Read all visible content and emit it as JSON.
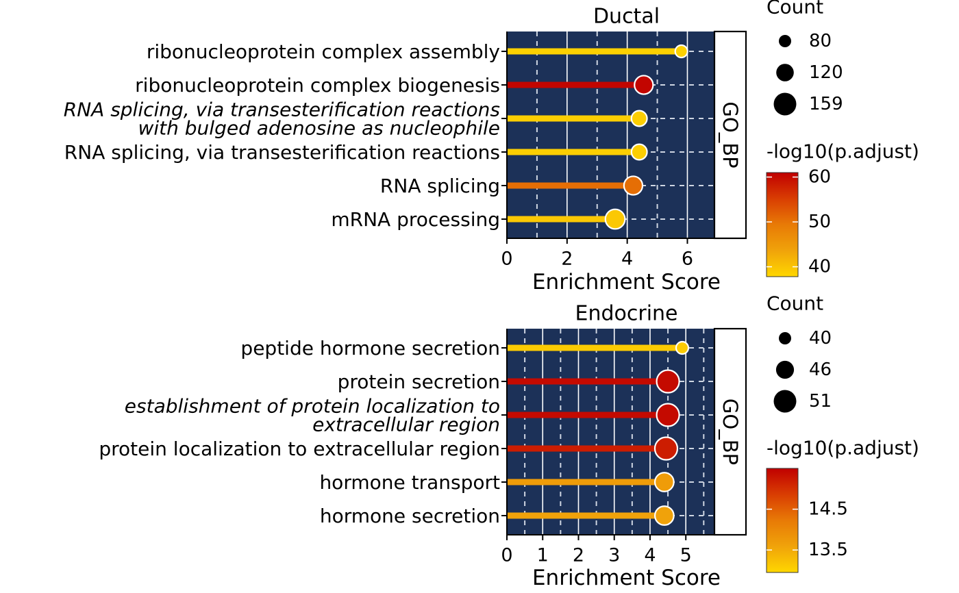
{
  "chart_data": [
    {
      "type": "lollipop",
      "title": "Ductal",
      "xlabel": "Enrichment Score",
      "strip_label": "GO_BP",
      "xlim": [
        0,
        6.9
      ],
      "xticks": [
        "0",
        "2",
        "4",
        "6"
      ],
      "xtick_values": [
        0,
        2,
        4,
        6
      ],
      "panel_color": "#1c3158",
      "terms": [
        {
          "label": "ribonucleoprotein complex assembly",
          "italic": false,
          "score": 5.8,
          "count": 68,
          "neglog10_padj": 38.5
        },
        {
          "label": "ribonucleoprotein complex biogenesis",
          "italic": false,
          "score": 4.55,
          "count": 128,
          "neglog10_padj": 60.5
        },
        {
          "label": "RNA splicing, via transesterification reactions with bulged adenosine as nucleophile",
          "label_lines": [
            "RNA splicing, via transesterification reactions",
            "with bulged adenosine as nucleophile"
          ],
          "italic": true,
          "score": 4.4,
          "count": 105,
          "neglog10_padj": 38.8
        },
        {
          "label": "RNA splicing, via transesterification reactions",
          "italic": false,
          "score": 4.4,
          "count": 105,
          "neglog10_padj": 38.8
        },
        {
          "label": "RNA splicing",
          "italic": false,
          "score": 4.2,
          "count": 128,
          "neglog10_padj": 50.5
        },
        {
          "label": "mRNA processing",
          "italic": false,
          "score": 3.6,
          "count": 136,
          "neglog10_padj": 39.5
        }
      ],
      "size_legend": {
        "title": "Count",
        "labels": [
          "80",
          "120",
          "159"
        ],
        "values": [
          80,
          120,
          159
        ]
      },
      "color_legend": {
        "title": "-log10(p.adjust)",
        "labels": [
          "60",
          "50",
          "40"
        ],
        "values": [
          60,
          50,
          40
        ],
        "range": [
          37.8,
          61
        ],
        "colors": [
          "#ffd700",
          "#f0a30a",
          "#e87a06",
          "#d93d02",
          "#c00000"
        ]
      }
    },
    {
      "type": "lollipop",
      "title": "Endocrine",
      "xlabel": "Enrichment Score",
      "strip_label": "GO_BP",
      "xlim": [
        0,
        5.8
      ],
      "xticks": [
        "0",
        "1",
        "2",
        "3",
        "4",
        "5"
      ],
      "xtick_values": [
        0,
        1,
        2,
        3,
        4,
        5
      ],
      "panel_color": "#1c3158",
      "terms": [
        {
          "label": "peptide hormone secretion",
          "italic": false,
          "score": 4.9,
          "count": 38,
          "neglog10_padj": 13.1
        },
        {
          "label": "protein secretion",
          "italic": false,
          "score": 4.5,
          "count": 51,
          "neglog10_padj": 15.4
        },
        {
          "label": "establishment of protein localization to extracellular region",
          "label_lines": [
            "establishment of protein localization to",
            "extracellular region"
          ],
          "italic": true,
          "score": 4.5,
          "count": 51,
          "neglog10_padj": 15.4
        },
        {
          "label": "protein localization to extracellular region",
          "italic": false,
          "score": 4.45,
          "count": 51,
          "neglog10_padj": 15.2
        },
        {
          "label": "hormone transport",
          "italic": false,
          "score": 4.4,
          "count": 47,
          "neglog10_padj": 13.7
        },
        {
          "label": "hormone secretion",
          "italic": false,
          "score": 4.4,
          "count": 47,
          "neglog10_padj": 13.6
        }
      ],
      "size_legend": {
        "title": "Count",
        "labels": [
          "40",
          "46",
          "51"
        ],
        "values": [
          40,
          46,
          51
        ]
      },
      "color_legend": {
        "title": "-log10(p.adjust)",
        "labels": [
          "14.5",
          "13.5"
        ],
        "values": [
          14.5,
          13.5
        ],
        "range": [
          12.95,
          15.5
        ],
        "colors": [
          "#ffd700",
          "#f0a30a",
          "#e87a06",
          "#d93d02",
          "#c00000"
        ]
      }
    }
  ]
}
